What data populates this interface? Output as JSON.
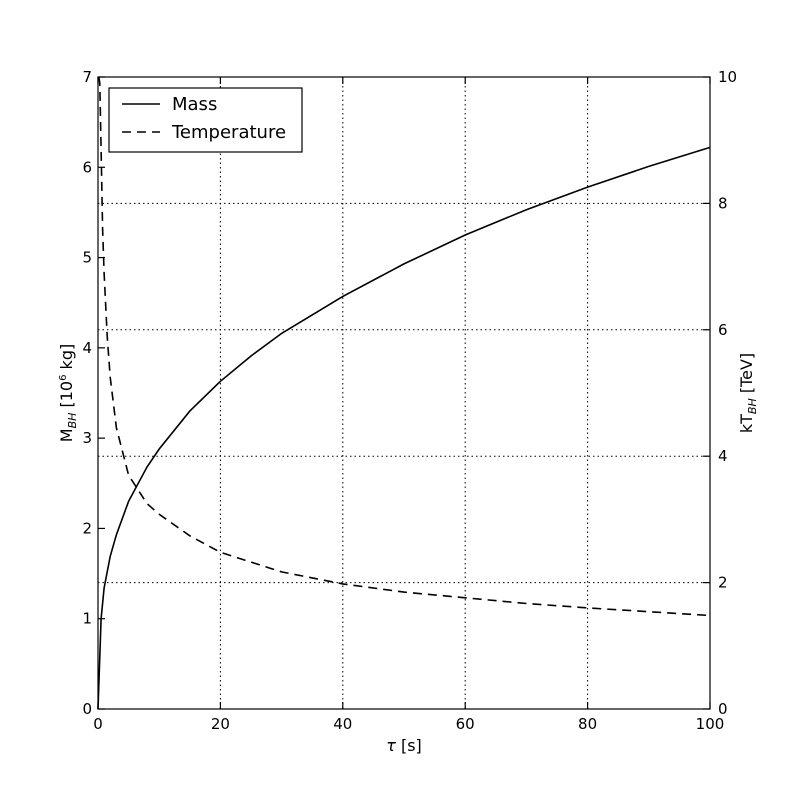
{
  "chart_data": {
    "type": "line",
    "x_axis": {
      "label_main": "τ",
      "label_unit": " [s]",
      "range": [
        0,
        100
      ],
      "ticks": [
        0,
        20,
        40,
        60,
        80,
        100
      ]
    },
    "y_left": {
      "label_main": "M",
      "label_sub": "BH",
      "label_pre": " [10",
      "label_sup": "6",
      "label_post": " kg]",
      "range": [
        0,
        7
      ],
      "ticks": [
        0,
        1,
        2,
        3,
        4,
        5,
        6,
        7
      ]
    },
    "y_right": {
      "label_main": "kT",
      "label_sub": "BH",
      "label_unit": " [TeV]",
      "range": [
        0,
        10
      ],
      "ticks": [
        0,
        2,
        4,
        6,
        8,
        10
      ]
    },
    "grid": true,
    "legend": {
      "position": "top-left",
      "entries": [
        {
          "label": "Mass",
          "style": "solid"
        },
        {
          "label": "Temperature",
          "style": "dashed"
        }
      ]
    },
    "series": [
      {
        "name": "Mass",
        "axis": "left",
        "style": "solid",
        "x": [
          0,
          0.5,
          1,
          2,
          3,
          5,
          8,
          10,
          15,
          20,
          25,
          30,
          40,
          50,
          60,
          70,
          80,
          90,
          100
        ],
        "y": [
          0,
          1.0,
          1.34,
          1.69,
          1.93,
          2.3,
          2.68,
          2.88,
          3.3,
          3.63,
          3.91,
          4.16,
          4.57,
          4.93,
          5.25,
          5.53,
          5.78,
          6.01,
          6.22
        ]
      },
      {
        "name": "Temperature",
        "axis": "right",
        "style": "dashed",
        "x": [
          0.15,
          0.3,
          0.5,
          0.75,
          1,
          1.5,
          2,
          3,
          5,
          8,
          10,
          15,
          20,
          30,
          40,
          50,
          60,
          70,
          80,
          90,
          100
        ],
        "y": [
          10,
          9.9,
          8.85,
          7.6,
          6.9,
          5.9,
          5.25,
          4.45,
          3.7,
          3.25,
          3.08,
          2.74,
          2.48,
          2.17,
          1.98,
          1.85,
          1.76,
          1.67,
          1.6,
          1.54,
          1.48
        ]
      }
    ]
  }
}
